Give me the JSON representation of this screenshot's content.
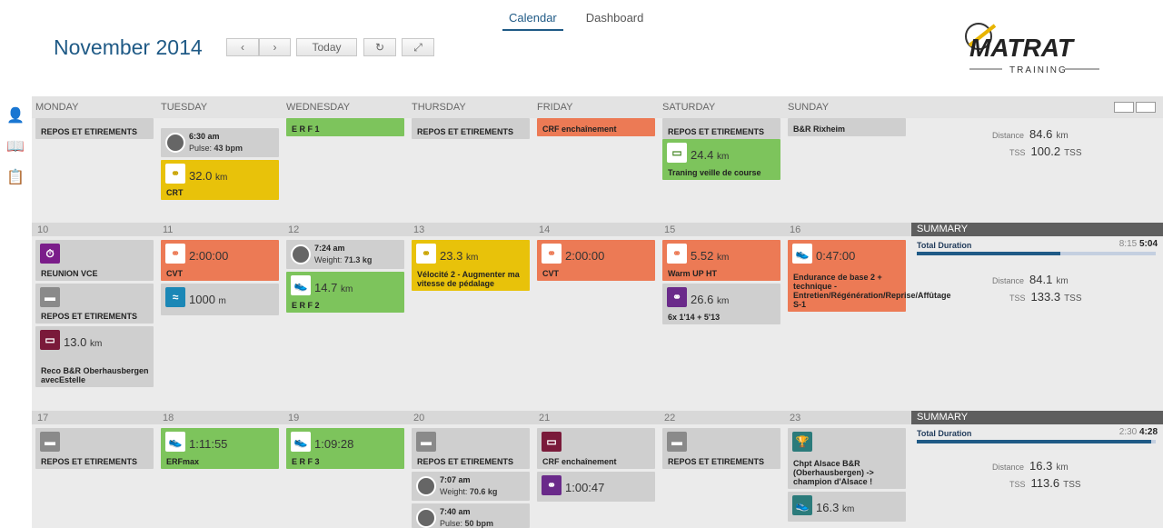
{
  "nav": {
    "tabs": [
      {
        "label": "Calendar"
      },
      {
        "label": "Dashboard"
      }
    ]
  },
  "header": {
    "month": "November",
    "year": "2014",
    "today_label": "Today"
  },
  "logo": {
    "name": "MATRAT",
    "sub": "TRAINING"
  },
  "days": [
    "MONDAY",
    "TUESDAY",
    "WEDNESDAY",
    "THURSDAY",
    "FRIDAY",
    "SATURDAY",
    "SUNDAY"
  ],
  "week0": {
    "mon": {
      "label": "REPOS ET ETIREMENTS"
    },
    "tue_w": {
      "time": "6:30 am",
      "sub_k": "Pulse:",
      "sub_v": "43 bpm"
    },
    "tue": {
      "value": "32.0",
      "unit": "km",
      "label": "CRT"
    },
    "wed": {
      "label": "E R F 1"
    },
    "thu": {
      "label": "REPOS ET ETIREMENTS"
    },
    "fri": {
      "label": "CRF enchaînement"
    },
    "sat": {
      "label": "REPOS ET ETIREMENTS"
    },
    "sat2": {
      "value": "24.4",
      "unit": "km",
      "label": "Traning veille de course"
    },
    "sun": {
      "label": "B&R Rixheim"
    },
    "summary": {
      "dist_k": "Distance",
      "dist_v": "84.6",
      "dist_u": "km",
      "tss_k": "TSS",
      "tss_v": "100.2",
      "tss_u": "TSS"
    }
  },
  "week1": {
    "dates": [
      "10",
      "11",
      "12",
      "13",
      "14",
      "15",
      "16"
    ],
    "mon": [
      {
        "label": "REUNION VCE"
      },
      {
        "label": "REPOS ET ETIREMENTS"
      },
      {
        "value": "13.0",
        "unit": "km",
        "label": "Reco B&R Oberhausbergen avecEstelle"
      }
    ],
    "tue": [
      {
        "value": "2:00:00",
        "label": "CVT"
      },
      {
        "value": "1000",
        "unit": "m"
      }
    ],
    "wed_w": {
      "time": "7:24 am",
      "sub_k": "Weight:",
      "sub_v": "71.3 kg"
    },
    "wed": {
      "value": "14.7",
      "unit": "km",
      "label": "E R F 2"
    },
    "thu": {
      "value": "23.3",
      "unit": "km",
      "label": "Vélocité 2 - Augmenter ma vitesse de pédalage"
    },
    "fri": {
      "value": "2:00:00",
      "label": "CVT"
    },
    "sat": [
      {
        "value": "5.52",
        "unit": "km",
        "label": "Warm UP HT"
      },
      {
        "value": "26.6",
        "unit": "km",
        "label": "6x 1'14 + 5'13"
      }
    ],
    "sun": {
      "value": "0:47:00",
      "label": "Endurance de base 2 + technique - Entretien/Régénération/Reprise/Affûtage S-1"
    },
    "summary": {
      "head": "SUMMARY",
      "total_label": "Total Duration",
      "planned": "8:15",
      "actual": "5:04",
      "progress": 0.6,
      "dist_k": "Distance",
      "dist_v": "84.1",
      "dist_u": "km",
      "tss_k": "TSS",
      "tss_v": "133.3",
      "tss_u": "TSS"
    }
  },
  "week2": {
    "dates": [
      "17",
      "18",
      "19",
      "20",
      "21",
      "22",
      "23"
    ],
    "mon": {
      "label": "REPOS ET ETIREMENTS"
    },
    "tue": {
      "value": "1:11:55",
      "label": "ERFmax"
    },
    "wed": {
      "value": "1:09:28",
      "label": "E R F 3"
    },
    "thu": {
      "label": "REPOS ET ETIREMENTS"
    },
    "thu_w1": {
      "time": "7:07 am",
      "sub_k": "Weight:",
      "sub_v": "70.6 kg"
    },
    "thu_w2": {
      "time": "7:40 am",
      "sub_k": "Pulse:",
      "sub_v": "50 bpm"
    },
    "fri": [
      {
        "label": "CRF enchaînement"
      },
      {
        "value": "1:00:47"
      }
    ],
    "sat": {
      "label": "REPOS ET ETIREMENTS"
    },
    "sun": [
      {
        "label": "Chpt Alsace B&R (Oberhausbergen) -> champion d'Alsace !"
      },
      {
        "value": "16.3",
        "unit": "km"
      }
    ],
    "summary": {
      "head": "SUMMARY",
      "total_label": "Total Duration",
      "planned": "2:30",
      "actual": "4:28",
      "progress": 0.98,
      "dist_k": "Distance",
      "dist_v": "16.3",
      "dist_u": "km",
      "tss_k": "TSS",
      "tss_v": "113.6",
      "tss_u": "TSS"
    }
  }
}
